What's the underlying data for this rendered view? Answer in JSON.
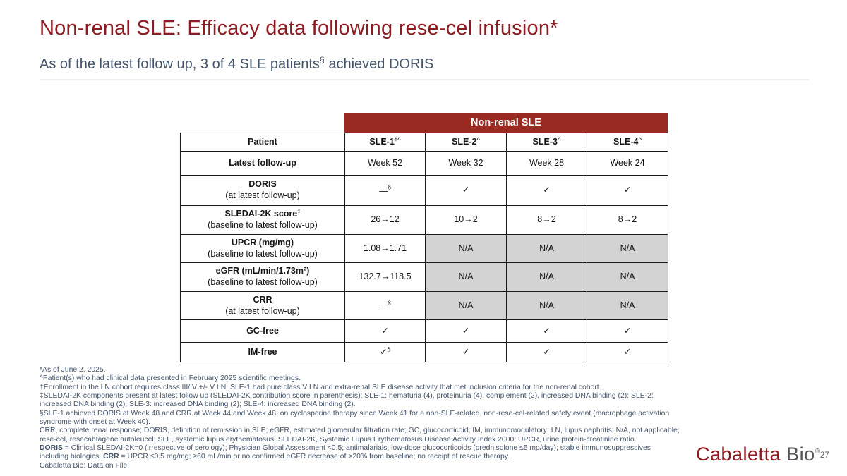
{
  "slide": {
    "title": "Non-renal SLE: Efficacy data following rese-cel infusion*",
    "subtitle_segments": [
      {
        "t": "As of the latest follow up, 3 of 4 SLE patients"
      },
      {
        "t": "§",
        "s": 1
      },
      {
        "t": " achieved DORIS"
      }
    ]
  },
  "table": {
    "band": "Non-renal SLE",
    "header": {
      "corner": [
        {
          "t": "Patient"
        }
      ],
      "cols": [
        [
          {
            "t": "SLE-1"
          },
          {
            "t": "†^",
            "s": 1
          }
        ],
        [
          {
            "t": "SLE-2"
          },
          {
            "t": "^",
            "s": 1
          }
        ],
        [
          {
            "t": "SLE-3"
          },
          {
            "t": "^",
            "s": 1
          }
        ],
        [
          {
            "t": "SLE-4"
          },
          {
            "t": "^",
            "s": 1
          }
        ]
      ]
    },
    "rows": [
      {
        "label": [
          {
            "t": "Latest follow-up"
          }
        ],
        "sub": null,
        "cells": [
          {
            "kind": "text",
            "segs": [
              {
                "t": "Week 52"
              }
            ]
          },
          {
            "kind": "text",
            "segs": [
              {
                "t": "Week 32"
              }
            ]
          },
          {
            "kind": "text",
            "segs": [
              {
                "t": "Week 28"
              }
            ]
          },
          {
            "kind": "text",
            "segs": [
              {
                "t": "Week 24"
              }
            ]
          }
        ]
      },
      {
        "label": [
          {
            "t": "DORIS"
          }
        ],
        "sub": [
          {
            "t": "(at latest follow-up)"
          }
        ],
        "cells": [
          {
            "kind": "dash",
            "segs": [
              {
                "t": "—",
                "dash": 1
              },
              {
                "t": "§",
                "s": 1
              }
            ]
          },
          {
            "kind": "check",
            "segs": [
              {
                "t": "✓"
              }
            ]
          },
          {
            "kind": "check",
            "segs": [
              {
                "t": "✓"
              }
            ]
          },
          {
            "kind": "check",
            "segs": [
              {
                "t": "✓"
              }
            ]
          }
        ]
      },
      {
        "label": [
          {
            "t": "SLEDAI-2K score"
          },
          {
            "t": "‡",
            "s": 1
          }
        ],
        "sub": [
          {
            "t": "(baseline to latest follow-up)"
          }
        ],
        "cells": [
          {
            "kind": "text",
            "segs": [
              {
                "t": "26→12"
              }
            ]
          },
          {
            "kind": "text",
            "segs": [
              {
                "t": "10→2"
              }
            ]
          },
          {
            "kind": "text",
            "segs": [
              {
                "t": "8→2"
              }
            ]
          },
          {
            "kind": "text",
            "segs": [
              {
                "t": "8→2"
              }
            ]
          }
        ]
      },
      {
        "label": [
          {
            "t": "UPCR (mg/mg)"
          }
        ],
        "sub": [
          {
            "t": "(baseline to latest follow-up)"
          }
        ],
        "cells": [
          {
            "kind": "text",
            "segs": [
              {
                "t": "1.08→1.71"
              }
            ]
          },
          {
            "kind": "na",
            "segs": [
              {
                "t": "N/A"
              }
            ]
          },
          {
            "kind": "na",
            "segs": [
              {
                "t": "N/A"
              }
            ]
          },
          {
            "kind": "na",
            "segs": [
              {
                "t": "N/A"
              }
            ]
          }
        ]
      },
      {
        "label": [
          {
            "t": "eGFR (mL/min/1.73m²)"
          }
        ],
        "sub": [
          {
            "t": "(baseline to latest follow-up)"
          }
        ],
        "cells": [
          {
            "kind": "text",
            "segs": [
              {
                "t": "132.7→118.5"
              }
            ]
          },
          {
            "kind": "na",
            "segs": [
              {
                "t": "N/A"
              }
            ]
          },
          {
            "kind": "na",
            "segs": [
              {
                "t": "N/A"
              }
            ]
          },
          {
            "kind": "na",
            "segs": [
              {
                "t": "N/A"
              }
            ]
          }
        ]
      },
      {
        "label": [
          {
            "t": "CRR"
          }
        ],
        "sub": [
          {
            "t": "(at latest follow-up)"
          }
        ],
        "cells": [
          {
            "kind": "dash",
            "segs": [
              {
                "t": "—",
                "dash": 1
              },
              {
                "t": "§",
                "s": 1
              }
            ]
          },
          {
            "kind": "na",
            "segs": [
              {
                "t": "N/A"
              }
            ]
          },
          {
            "kind": "na",
            "segs": [
              {
                "t": "N/A"
              }
            ]
          },
          {
            "kind": "na",
            "segs": [
              {
                "t": "N/A"
              }
            ]
          }
        ]
      },
      {
        "label": [
          {
            "t": "GC-free"
          }
        ],
        "sub": null,
        "cells": [
          {
            "kind": "check",
            "segs": [
              {
                "t": "✓"
              }
            ]
          },
          {
            "kind": "check",
            "segs": [
              {
                "t": "✓"
              }
            ]
          },
          {
            "kind": "check",
            "segs": [
              {
                "t": "✓"
              }
            ]
          },
          {
            "kind": "check",
            "segs": [
              {
                "t": "✓"
              }
            ]
          }
        ]
      },
      {
        "label": [
          {
            "t": "IM-free"
          }
        ],
        "sub": null,
        "cells": [
          {
            "kind": "check",
            "segs": [
              {
                "t": "✓"
              },
              {
                "t": "§",
                "s": 1
              }
            ]
          },
          {
            "kind": "check",
            "segs": [
              {
                "t": "✓"
              }
            ]
          },
          {
            "kind": "check",
            "segs": [
              {
                "t": "✓"
              }
            ]
          },
          {
            "kind": "check",
            "segs": [
              {
                "t": "✓"
              }
            ]
          }
        ]
      }
    ]
  },
  "footnotes": [
    [
      {
        "t": "*As of June 2, 2025."
      }
    ],
    [
      {
        "t": "^Patient(s) who had clinical data presented in February 2025 scientific meetings."
      }
    ],
    [
      {
        "t": "†Enrollment in the LN cohort requires class III/IV +/- V LN. SLE-1 had pure class V LN and extra-renal SLE disease activity that met inclusion criteria for the non-renal cohort."
      }
    ],
    [
      {
        "t": "‡SLEDAI-2K components present at latest follow up (SLEDAI-2K contribution score in parenthesis): SLE-1: hematuria (4), proteinuria (4), complement (2), increased DNA binding (2); SLE-2: increased DNA binding (2); SLE-3: increased DNA binding (2); SLE-4: increased DNA binding (2)."
      }
    ],
    [
      {
        "t": "§SLE-1 achieved DORIS at Week 48 and CRR at Week 44 and Week 48; on cyclosporine therapy since Week 41 for a non-SLE-related, non-rese-cel-related safety event (macrophage activation syndrome with onset at Week 40)."
      }
    ],
    [
      {
        "t": "CRR, complete renal response; DORIS, definition of remission in SLE; eGFR, estimated glomerular filtration rate; GC, glucocorticoid; IM, immunomodulatory; LN, lupus nephritis; N/A, not applicable; rese-cel, resecabtagene autoleucel; SLE, systemic lupus erythematosus; SLEDAI-2K, Systemic Lupus Erythematosus Disease Activity Index 2000; UPCR, urine protein-creatinine ratio."
      }
    ],
    [
      {
        "t": "DORIS",
        "b": 1
      },
      {
        "t": " = Clinical SLEDAI-2K=0 (irrespective of serology); Physician Global Assessment <0.5; antimalarials; low-dose glucocorticoids (prednisolone ≤5 mg/day); stable immunosuppressives including biologics. "
      },
      {
        "t": "CRR",
        "b": 1
      },
      {
        "t": " = UPCR ≤0.5 mg/mg; ≥60 mL/min or no confirmed eGFR decrease of >20% from baseline; no receipt of rescue therapy."
      }
    ],
    [
      {
        "t": "Cabaletta Bio: Data on File."
      }
    ]
  ],
  "footer": {
    "logo_cabaletta": "Cabaletta",
    "logo_bio": " Bio",
    "reg_mark": "®",
    "page_number": "27"
  },
  "colors": {
    "title_red": "#8E1B21",
    "band_red": "#9A2B23",
    "check_green": "#2BAE5C",
    "na_gray": "#D3D3D3",
    "subtitle_slate": "#44546A"
  }
}
